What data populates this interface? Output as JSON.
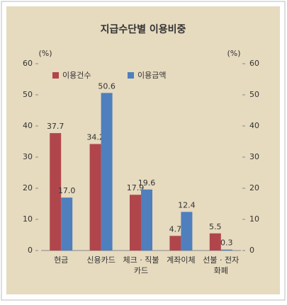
{
  "chart_data": {
    "type": "bar",
    "title": "지급수단별 이용비중",
    "y_label": "(%)",
    "y2_label": "(%)",
    "categories": [
      "현금",
      "신용카드",
      "체크 · 직불\n카드",
      "계좌이체",
      "선불 · 전자\n화폐"
    ],
    "series": [
      {
        "name": "이용건수",
        "color": "#b0464b",
        "values": [
          37.7,
          34.2,
          17.9,
          4.7,
          5.5
        ],
        "value_labels": [
          "37.7",
          "34.2",
          "17.9",
          "4.7",
          "5.5"
        ]
      },
      {
        "name": "이용금액",
        "color": "#4f7fbd",
        "values": [
          17.0,
          50.6,
          19.6,
          12.4,
          0.3
        ],
        "value_labels": [
          "17.0",
          "50.6",
          "19.6",
          "12.4",
          "0.3"
        ]
      }
    ],
    "ylim": [
      0,
      60
    ],
    "yticks": [
      0,
      10,
      20,
      30,
      40,
      50,
      60
    ],
    "y2lim": [
      0,
      60
    ],
    "y2ticks": [
      0,
      10,
      20,
      30,
      40,
      50,
      60
    ],
    "legend": "top-left"
  }
}
